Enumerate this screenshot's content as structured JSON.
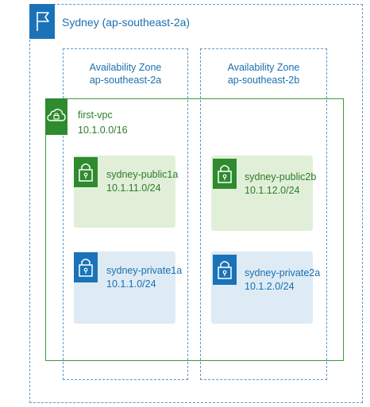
{
  "region": {
    "label": "Sydney (ap-southeast-2a)"
  },
  "availability_zones": [
    {
      "title": "Availability Zone",
      "name": "ap-southeast-2a"
    },
    {
      "title": "Availability Zone",
      "name": "ap-southeast-2b"
    }
  ],
  "vpc": {
    "name": "first-vpc",
    "cidr": "10.1.0.0/16"
  },
  "subnets": [
    {
      "name": "sydney-public1a",
      "cidr": "10.1.11.0/24",
      "type": "public"
    },
    {
      "name": "sydney-public2b",
      "cidr": "10.1.12.0/24",
      "type": "public"
    },
    {
      "name": "sydney-private1a",
      "cidr": "10.1.1.0/24",
      "type": "private"
    },
    {
      "name": "sydney-private2a",
      "cidr": "10.1.2.0/24",
      "type": "private"
    }
  ],
  "icons": {
    "region": "flag-icon",
    "vpc": "cloud-lock-icon",
    "subnet": "padlock-icon"
  },
  "colors": {
    "region_blue": "#1a73b8",
    "vpc_green": "#2e8b2e",
    "public_subnet_bg": "#e1efd9",
    "private_subnet_bg": "#deebf5"
  }
}
